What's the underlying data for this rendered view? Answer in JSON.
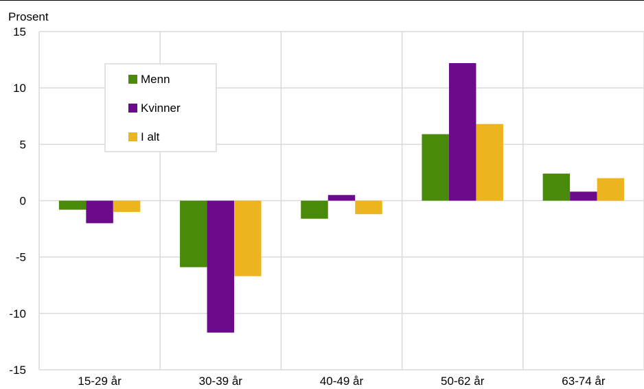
{
  "chart_data": {
    "type": "bar",
    "ylabel": "Prosent",
    "categories": [
      "15-29 år",
      "30-39 år",
      "40-49 år",
      "50-62 år",
      "63-74 år"
    ],
    "series": [
      {
        "name": "Menn",
        "color": "#4a8a0b",
        "values": [
          -0.8,
          -5.9,
          -1.6,
          5.9,
          2.4
        ]
      },
      {
        "name": "Kvinner",
        "color": "#6b0a8b",
        "values": [
          -2.0,
          -11.7,
          0.5,
          12.2,
          0.8
        ]
      },
      {
        "name": "I alt",
        "color": "#ecb520",
        "values": [
          -1.0,
          -6.7,
          -1.2,
          6.8,
          2.0
        ]
      }
    ],
    "ylim": [
      -15,
      15
    ],
    "yticks": [
      -15,
      -10,
      -5,
      0,
      5,
      10,
      15
    ],
    "grid": true,
    "legend": "top-left"
  }
}
